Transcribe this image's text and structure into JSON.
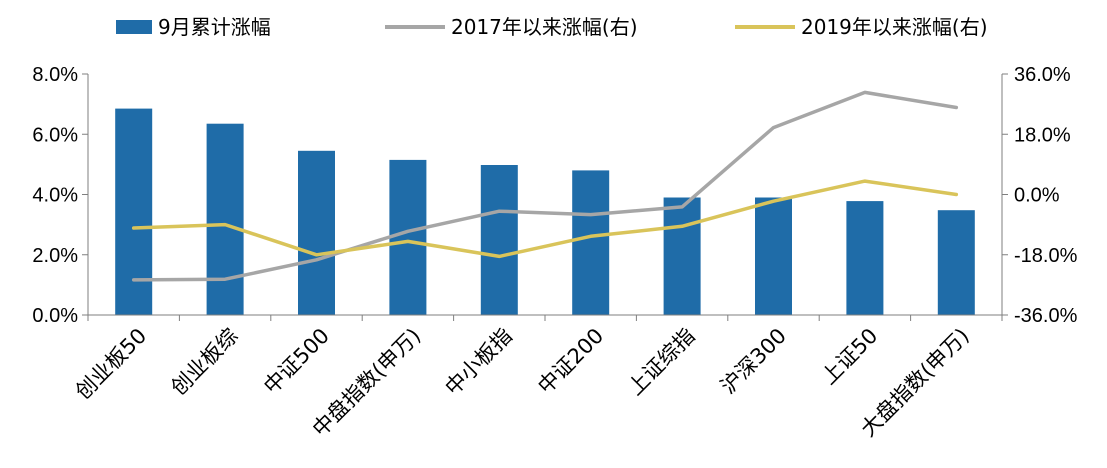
{
  "chart_data": {
    "type": "bar",
    "categories": [
      "创业板50",
      "创业板综",
      "中证500",
      "中盘指数(申万)",
      "中小板指",
      "中证200",
      "上证综指",
      "沪深300",
      "上证50",
      "大盘指数(申万)"
    ],
    "series": [
      {
        "name": "9月累计涨幅",
        "type": "bar",
        "axis": "left",
        "color": "#1f6ca8",
        "values": [
          6.85,
          6.35,
          5.45,
          5.15,
          4.98,
          4.8,
          3.9,
          3.9,
          3.78,
          3.48
        ]
      },
      {
        "name": "2017年以来涨幅(右)",
        "type": "line",
        "axis": "right",
        "color": "#a6a6a6",
        "values": [
          -25.5,
          -25.3,
          -19.5,
          -11.0,
          -5.0,
          -6.0,
          -3.7,
          20.0,
          30.5,
          26.0
        ]
      },
      {
        "name": "2019年以来涨幅(右)",
        "type": "line",
        "axis": "right",
        "color": "#d9c45a",
        "values": [
          -10.0,
          -9.0,
          -18.0,
          -14.0,
          -18.5,
          -12.5,
          -9.5,
          -2.0,
          4.0,
          0.0
        ]
      }
    ],
    "y_left": {
      "min": 0,
      "max": 8,
      "ticks": [
        0,
        2,
        4,
        6,
        8
      ],
      "tick_labels": [
        "0.0%",
        "2.0%",
        "4.0%",
        "6.0%",
        "8.0%"
      ]
    },
    "y_right": {
      "min": -36,
      "max": 36,
      "ticks": [
        -36,
        -18,
        0,
        18,
        36
      ],
      "tick_labels": [
        "-36.0%",
        "-18.0%",
        "0.0%",
        "18.0%",
        "36.0%"
      ]
    },
    "legend_position": "top",
    "grid": false,
    "title": "",
    "xlabel": "",
    "ylabel": ""
  }
}
